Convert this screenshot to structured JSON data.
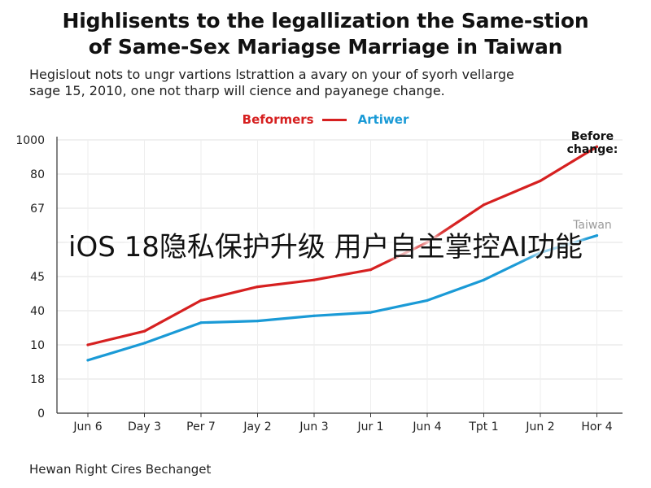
{
  "title_lines": [
    "Highlisents to the legallization the Same-stion",
    "of Same-Sex Mariagse Marriage in Taiwan"
  ],
  "subtitle_lines": [
    "Hegislout nots to ungr vartions lstrattion a avary on your of syorh vellarge",
    "sage 15, 2010, one not tharp will cience and payanege change."
  ],
  "overlay_text": "iOS 18隐私保护升级 用户自主掌控AI功能",
  "footer_text": "Hewan Right Cires Bechanget",
  "colors": {
    "red": "#d62020",
    "blue": "#1a9ad6",
    "grid": "#e2e2e2",
    "axis": "#333333"
  },
  "chart_data": {
    "type": "line",
    "categories": [
      "Jun 6",
      "Day 3",
      "Per 7",
      "Jay 2",
      "Jun 3",
      "Jur 1",
      "Jun 4",
      "Tpt 1",
      "Jun 2",
      "Hor 4"
    ],
    "y_tick_labels": [
      "0",
      "18",
      "10",
      "40",
      "45",
      "",
      "67",
      "80",
      "1000"
    ],
    "ylim": [
      0,
      8
    ],
    "grid": true,
    "legend_position": "top-center",
    "series": [
      {
        "name": "Beformers",
        "color": "#d62020",
        "values": [
          2.0,
          2.4,
          3.3,
          3.7,
          3.9,
          4.2,
          5.0,
          6.1,
          6.8,
          7.8
        ]
      },
      {
        "name": "Artiwer",
        "color": "#1a9ad6",
        "values": [
          1.55,
          2.05,
          2.65,
          2.7,
          2.85,
          2.95,
          3.3,
          3.9,
          4.7,
          5.2
        ]
      }
    ],
    "annotations": [
      {
        "text_lines": [
          "Before",
          "change:"
        ]
      },
      {
        "text_lines": [
          "Taiwan"
        ]
      }
    ]
  }
}
